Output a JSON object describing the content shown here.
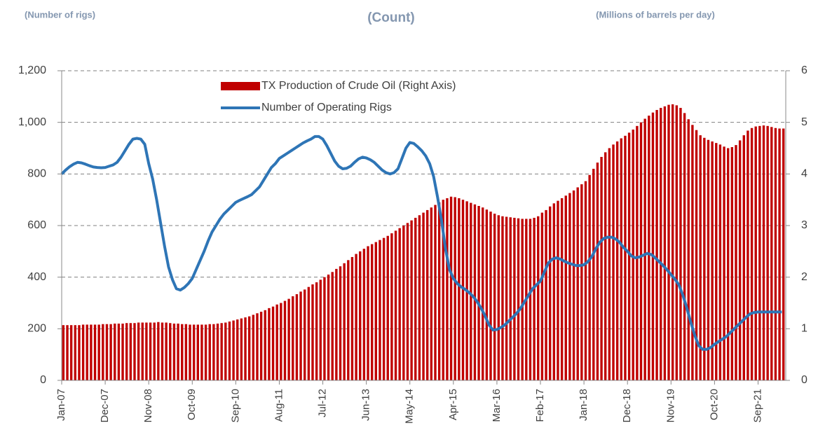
{
  "chart_data": {
    "type": "bar",
    "subtitle_left": "(Number of rigs)",
    "title": "(Count)",
    "subtitle_right": "(Millions of barrels per day)",
    "categories": [
      "Jan-07",
      null,
      null,
      null,
      null,
      null,
      null,
      null,
      null,
      null,
      null,
      "Dec-07",
      null,
      null,
      null,
      null,
      null,
      null,
      null,
      null,
      null,
      null,
      "Nov-08",
      null,
      null,
      null,
      null,
      null,
      null,
      null,
      null,
      null,
      null,
      "Oct-09",
      null,
      null,
      null,
      null,
      null,
      null,
      null,
      null,
      null,
      null,
      "Sep-10",
      null,
      null,
      null,
      null,
      null,
      null,
      null,
      null,
      null,
      null,
      "Aug-11",
      null,
      null,
      null,
      null,
      null,
      null,
      null,
      null,
      null,
      null,
      "Jul-12",
      null,
      null,
      null,
      null,
      null,
      null,
      null,
      null,
      null,
      null,
      "Jun-13",
      null,
      null,
      null,
      null,
      null,
      null,
      null,
      null,
      null,
      null,
      "May-14",
      null,
      null,
      null,
      null,
      null,
      null,
      null,
      null,
      null,
      null,
      "Apr-15",
      null,
      null,
      null,
      null,
      null,
      null,
      null,
      null,
      null,
      null,
      "Mar-16",
      null,
      null,
      null,
      null,
      null,
      null,
      null,
      null,
      null,
      null,
      "Feb-17",
      null,
      null,
      null,
      null,
      null,
      null,
      null,
      null,
      null,
      null,
      "Jan-18",
      null,
      null,
      null,
      null,
      null,
      null,
      null,
      null,
      null,
      null,
      "Dec-18",
      null,
      null,
      null,
      null,
      null,
      null,
      null,
      null,
      null,
      null,
      "Nov-19",
      null,
      null,
      null,
      null,
      null,
      null,
      null,
      null,
      null,
      null,
      "Oct-20",
      null,
      null,
      null,
      null,
      null,
      null,
      null,
      null,
      null,
      null,
      "Sep-21",
      null,
      null,
      null,
      null,
      null,
      null
    ],
    "series": [
      {
        "name": "TX Production of Crude Oil (Right Axis)",
        "type": "bar",
        "axis": "y2",
        "color": "#c00000",
        "values": [
          1.07,
          1.07,
          1.07,
          1.07,
          1.07,
          1.08,
          1.08,
          1.08,
          1.08,
          1.08,
          1.09,
          1.09,
          1.09,
          1.1,
          1.1,
          1.1,
          1.11,
          1.11,
          1.11,
          1.12,
          1.12,
          1.12,
          1.12,
          1.12,
          1.13,
          1.12,
          1.12,
          1.11,
          1.1,
          1.1,
          1.09,
          1.09,
          1.08,
          1.08,
          1.08,
          1.08,
          1.08,
          1.09,
          1.09,
          1.1,
          1.11,
          1.12,
          1.14,
          1.16,
          1.18,
          1.2,
          1.22,
          1.24,
          1.27,
          1.3,
          1.33,
          1.36,
          1.4,
          1.43,
          1.47,
          1.5,
          1.54,
          1.58,
          1.63,
          1.67,
          1.72,
          1.76,
          1.81,
          1.86,
          1.9,
          1.95,
          2.0,
          2.05,
          2.1,
          2.16,
          2.21,
          2.27,
          2.33,
          2.39,
          2.45,
          2.5,
          2.55,
          2.6,
          2.64,
          2.68,
          2.72,
          2.76,
          2.8,
          2.85,
          2.9,
          2.95,
          3.0,
          3.05,
          3.1,
          3.15,
          3.2,
          3.25,
          3.3,
          3.35,
          3.4,
          3.45,
          3.5,
          3.53,
          3.56,
          3.55,
          3.53,
          3.5,
          3.47,
          3.44,
          3.41,
          3.38,
          3.35,
          3.31,
          3.27,
          3.23,
          3.2,
          3.18,
          3.17,
          3.16,
          3.15,
          3.14,
          3.13,
          3.13,
          3.13,
          3.15,
          3.18,
          3.25,
          3.3,
          3.37,
          3.43,
          3.48,
          3.53,
          3.58,
          3.63,
          3.68,
          3.74,
          3.8,
          3.86,
          3.98,
          4.1,
          4.22,
          4.33,
          4.42,
          4.5,
          4.57,
          4.63,
          4.69,
          4.74,
          4.8,
          4.86,
          4.93,
          5.0,
          5.07,
          5.13,
          5.19,
          5.24,
          5.28,
          5.31,
          5.34,
          5.35,
          5.33,
          5.28,
          5.18,
          5.06,
          4.95,
          4.85,
          4.75,
          4.7,
          4.66,
          4.63,
          4.6,
          4.57,
          4.53,
          4.5,
          4.52,
          4.56,
          4.65,
          4.75,
          4.84,
          4.89,
          4.92,
          4.93,
          4.94,
          4.93,
          4.91,
          4.89,
          4.88,
          4.88
        ]
      },
      {
        "name": "Number of Operating Rigs",
        "type": "line",
        "axis": "y",
        "color": "#2e75b6",
        "values": [
          800,
          815,
          828,
          838,
          845,
          843,
          838,
          832,
          827,
          825,
          824,
          825,
          830,
          835,
          845,
          865,
          890,
          915,
          935,
          938,
          935,
          915,
          840,
          780,
          700,
          610,
          520,
          440,
          390,
          355,
          350,
          360,
          375,
          395,
          430,
          465,
          500,
          540,
          575,
          600,
          625,
          645,
          660,
          675,
          690,
          698,
          705,
          712,
          720,
          735,
          750,
          775,
          800,
          825,
          840,
          860,
          870,
          880,
          890,
          900,
          910,
          920,
          928,
          935,
          945,
          945,
          935,
          910,
          880,
          850,
          830,
          820,
          822,
          830,
          845,
          858,
          865,
          862,
          855,
          845,
          830,
          815,
          805,
          800,
          805,
          820,
          860,
          900,
          922,
          918,
          905,
          890,
          870,
          840,
          790,
          710,
          620,
          510,
          430,
          395,
          375,
          362,
          352,
          340,
          325,
          305,
          280,
          250,
          215,
          195,
          197,
          205,
          215,
          230,
          245,
          260,
          280,
          305,
          330,
          355,
          370,
          385,
          420,
          455,
          470,
          475,
          470,
          462,
          455,
          450,
          445,
          445,
          448,
          460,
          480,
          510,
          535,
          550,
          555,
          555,
          548,
          535,
          515,
          500,
          482,
          475,
          478,
          485,
          492,
          488,
          475,
          460,
          445,
          428,
          410,
          392,
          370,
          330,
          280,
          225,
          175,
          135,
          120,
          120,
          127,
          140,
          150,
          160,
          170,
          185,
          200,
          215,
          230,
          245,
          258,
          263,
          265,
          265,
          265,
          265,
          265,
          265,
          265
        ]
      }
    ],
    "ylim": [
      0,
      1200
    ],
    "yticks": [
      0,
      200,
      400,
      600,
      800,
      {
        "value": 1000,
        "label": "1,000"
      },
      {
        "value": 1200,
        "label": "1,200"
      }
    ],
    "y2lim": [
      0,
      6
    ],
    "y2ticks": [
      0,
      1,
      2,
      3,
      4,
      5,
      6
    ],
    "grid": true
  }
}
